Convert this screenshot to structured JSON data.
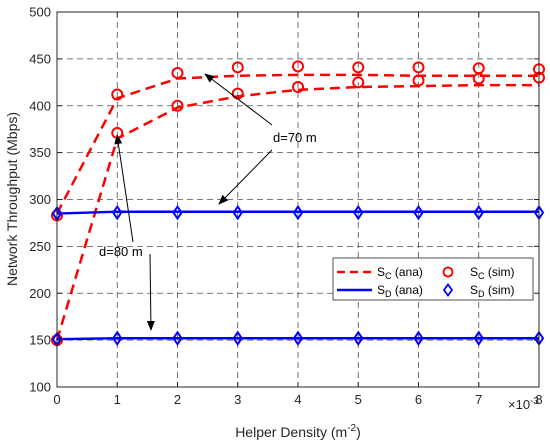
{
  "chart_data": {
    "type": "line",
    "xlabel": "Helper Density (m",
    "xlabel_sup": "-2",
    "xlabel_end": ")",
    "x_multiplier_base": "×10",
    "x_multiplier_exp": "-3",
    "ylabel": "Network Throughput (Mbps)",
    "xlim": [
      0,
      8
    ],
    "ylim": [
      100,
      500
    ],
    "xticks": [
      "0",
      "1",
      "2",
      "3",
      "4",
      "5",
      "6",
      "7",
      "8"
    ],
    "yticks": [
      "100",
      "150",
      "200",
      "250",
      "300",
      "350",
      "400",
      "450",
      "500"
    ],
    "grid": true,
    "legend_position": "right",
    "legend": [
      {
        "sym": "S",
        "sub": "C",
        "suffix": " (ana)"
      },
      {
        "sym": "S",
        "sub": "C",
        "suffix": " (sim)"
      },
      {
        "sym": "S",
        "sub": "D",
        "suffix": " (ana)"
      },
      {
        "sym": "S",
        "sub": "D",
        "suffix": " (sim)"
      }
    ],
    "annotations": [
      "d=70 m",
      "d=80 m"
    ],
    "colors": {
      "sc": "#ff0000",
      "sd": "#0000ff"
    },
    "x": [
      0,
      1,
      2,
      3,
      4,
      5,
      6,
      7,
      8
    ],
    "series": [
      {
        "group": "d70",
        "kind": "ana",
        "color": "#ff0000",
        "values": [
          285,
          408,
          429,
          432,
          433,
          433,
          432,
          432,
          432
        ]
      },
      {
        "group": "d70",
        "kind": "sim",
        "color": "#ff0000",
        "values": [
          283,
          412,
          435,
          441,
          442,
          441,
          441,
          440,
          439
        ]
      },
      {
        "group": "d80",
        "kind": "ana",
        "color": "#ff0000",
        "values": [
          150,
          365,
          398,
          410,
          417,
          420,
          421,
          422,
          422
        ]
      },
      {
        "group": "d80",
        "kind": "sim",
        "color": "#ff0000",
        "values": [
          150,
          371,
          400,
          413,
          420,
          425,
          427,
          429,
          430
        ]
      },
      {
        "group": "d70",
        "kind": "ana",
        "color": "#0000ff",
        "values": [
          285,
          287,
          287,
          287,
          287,
          287,
          287,
          287,
          287
        ]
      },
      {
        "group": "d70",
        "kind": "sim",
        "color": "#0000ff",
        "values": [
          285,
          286,
          286,
          286,
          286,
          286,
          286,
          286,
          286
        ]
      },
      {
        "group": "d80",
        "kind": "ana",
        "color": "#0000ff",
        "values": [
          151,
          152,
          152,
          152,
          152,
          152,
          152,
          152,
          152
        ]
      },
      {
        "group": "d80",
        "kind": "sim",
        "color": "#0000ff",
        "values": [
          151,
          152,
          152,
          152,
          152,
          152,
          152,
          152,
          152
        ]
      }
    ]
  }
}
